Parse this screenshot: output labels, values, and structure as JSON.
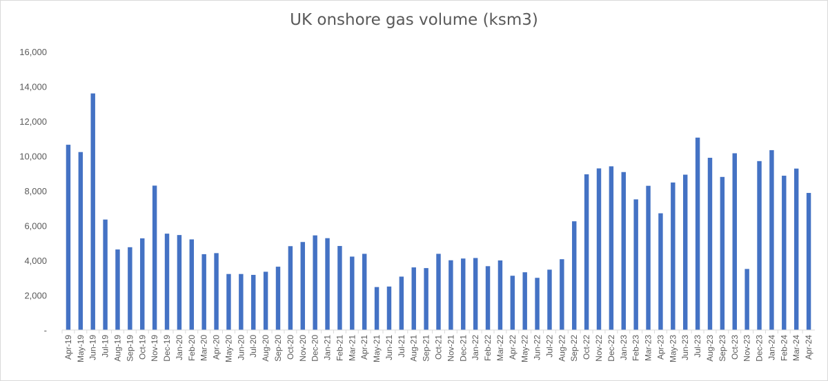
{
  "chart_data": {
    "type": "bar",
    "title": "UK onshore gas volume (ksm3)",
    "xlabel": "",
    "ylabel": "",
    "ylim": [
      0,
      16000
    ],
    "yticks": [
      0,
      2000,
      4000,
      6000,
      8000,
      10000,
      12000,
      14000,
      16000
    ],
    "ytick_labels": [
      "-",
      "2,000",
      "4,000",
      "6,000",
      "8,000",
      "10,000",
      "12,000",
      "14,000",
      "16,000"
    ],
    "grid": false,
    "legend": "none",
    "bar_color": "#4472c4",
    "categories": [
      "Apr-19",
      "May-19",
      "Jun-19",
      "Jul-19",
      "Aug-19",
      "Sep-19",
      "Oct-19",
      "Nov-19",
      "Dec-19",
      "Jan-20",
      "Feb-20",
      "Mar-20",
      "Apr-20",
      "May-20",
      "Jun-20",
      "Jul-20",
      "Aug-20",
      "Sep-20",
      "Oct-20",
      "Nov-20",
      "Dec-20",
      "Jan-21",
      "Feb-21",
      "Mar-21",
      "Apr-21",
      "May-21",
      "Jun-21",
      "Jul-21",
      "Aug-21",
      "Sep-21",
      "Oct-21",
      "Nov-21",
      "Dec-21",
      "Jan-22",
      "Feb-22",
      "Mar-22",
      "Apr-22",
      "May-22",
      "Jun-22",
      "Jul-22",
      "Aug-22",
      "Sep-22",
      "Oct-22",
      "Nov-22",
      "Dec-22",
      "Jan-23",
      "Feb-23",
      "Mar-23",
      "Apr-23",
      "May-23",
      "Jun-23",
      "Jul-23",
      "Aug-23",
      "Sep-23",
      "Oct-23",
      "Nov-23",
      "Dec-23",
      "Jan-24",
      "Feb-24",
      "Mar-24",
      "Apr-24"
    ],
    "values": [
      10650,
      10230,
      13600,
      6350,
      4630,
      4760,
      5270,
      8300,
      5540,
      5460,
      5210,
      4360,
      4420,
      3220,
      3220,
      3170,
      3350,
      3640,
      4820,
      5060,
      5440,
      5280,
      4830,
      4220,
      4380,
      2470,
      2500,
      3070,
      3600,
      3560,
      4380,
      4010,
      4110,
      4140,
      3670,
      4000,
      3120,
      3320,
      3000,
      3470,
      4070,
      6250,
      8950,
      9290,
      9410,
      9080,
      7510,
      8290,
      6710,
      8480,
      8930,
      11060,
      9900,
      8800,
      10160,
      3510,
      9710,
      10340,
      8870,
      9280,
      7880
    ]
  }
}
